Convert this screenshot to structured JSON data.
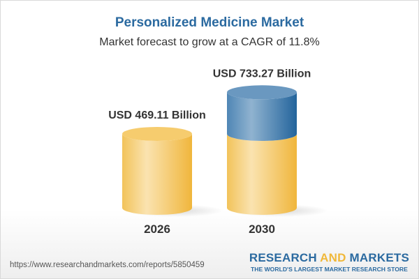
{
  "title": "Personalized Medicine Market",
  "subtitle": "Market forecast to grow at a CAGR of 11.8%",
  "footer": {
    "url": "https://www.researchandmarkets.com/reports/5850459",
    "logo_part1": "RESEARCH ",
    "logo_part2": "AND",
    "logo_part3": " MARKETS",
    "tagline": "THE WORLD'S LARGEST MARKET RESEARCH STORE"
  },
  "chart_data": {
    "type": "bar",
    "style": "3d-cylinder",
    "categories": [
      "2026",
      "2030"
    ],
    "values": [
      469.11,
      733.27
    ],
    "data_labels": [
      "USD 469.11 Billion",
      "USD 733.27 Billion"
    ],
    "unit": "USD Billion",
    "colors": {
      "base": "#f3c04d",
      "growth": "#2f6ea3",
      "label": "#333333"
    },
    "grid": false
  }
}
